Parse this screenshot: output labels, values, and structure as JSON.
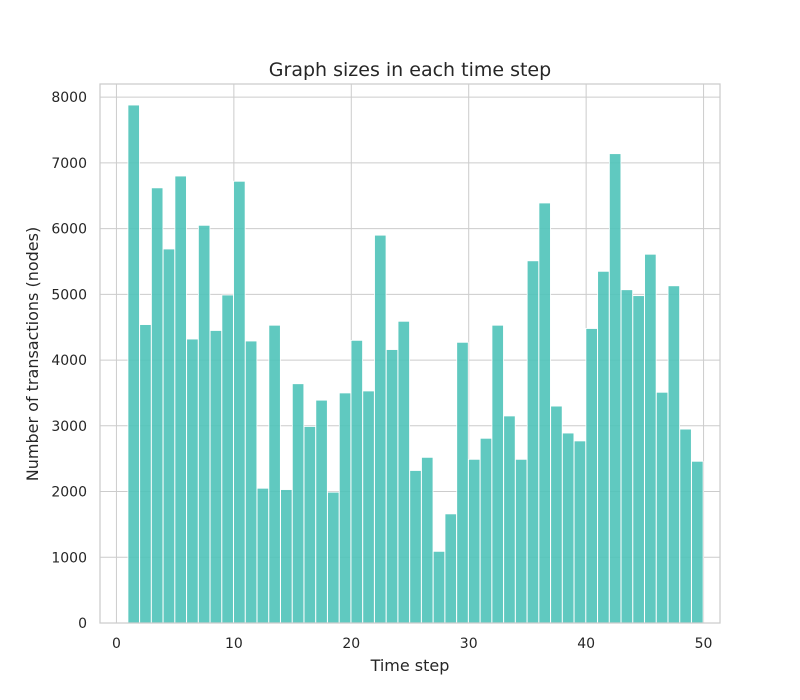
{
  "chart_data": {
    "type": "bar",
    "title": "Graph sizes in each time step",
    "xlabel": "Time step",
    "ylabel": "Number of transactions (nodes)",
    "xlim": [
      -1.4,
      51.4
    ],
    "ylim": [
      0,
      8200
    ],
    "xticks": [
      0,
      10,
      20,
      30,
      40,
      50
    ],
    "yticks": [
      0,
      1000,
      2000,
      3000,
      4000,
      5000,
      6000,
      7000,
      8000
    ],
    "grid": true,
    "bar_color": "#4fc3b9",
    "bin_width": 0.979,
    "categories": [
      1,
      2,
      3,
      4,
      5,
      6,
      7,
      8,
      9,
      10,
      11,
      12,
      13,
      14,
      15,
      16,
      17,
      18,
      19,
      20,
      21,
      22,
      23,
      24,
      25,
      26,
      27,
      28,
      29,
      30,
      31,
      32,
      33,
      34,
      35,
      36,
      37,
      38,
      39,
      40,
      41,
      42,
      43,
      44,
      45,
      46,
      47,
      48,
      49
    ],
    "values": [
      7880,
      4540,
      6620,
      5690,
      6800,
      4320,
      6050,
      4450,
      4990,
      6720,
      4290,
      2050,
      4530,
      2030,
      3640,
      2990,
      3390,
      1990,
      3500,
      4300,
      3530,
      5900,
      4160,
      4590,
      2320,
      2520,
      1090,
      1660,
      4270,
      2490,
      2810,
      4530,
      3150,
      2490,
      5510,
      6390,
      3300,
      2890,
      2770,
      4480,
      5350,
      7140,
      5070,
      4980,
      5610,
      3510,
      5130,
      2950,
      2460
    ]
  }
}
